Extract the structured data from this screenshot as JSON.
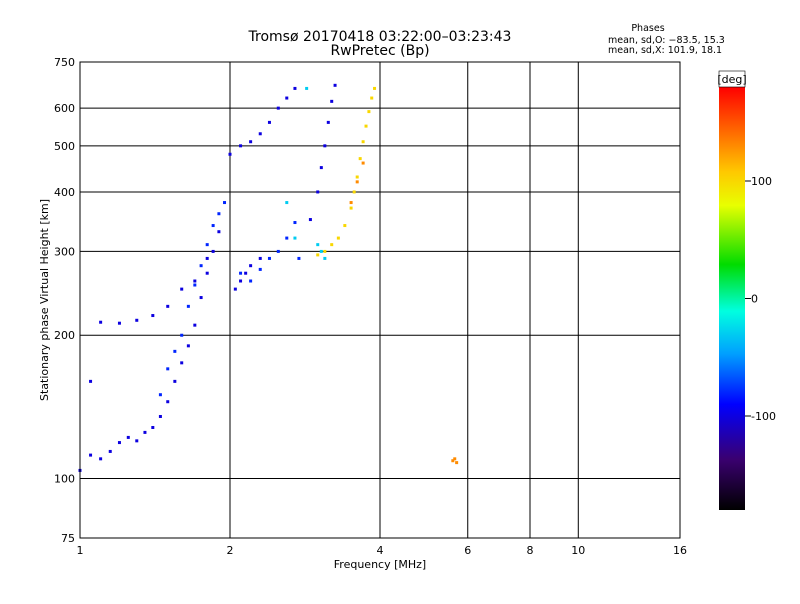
{
  "chart_data": {
    "type": "scatter",
    "title": "Tromsø 20170418 03:22:00–03:23:43",
    "subtitle": "RwPretec (Bp)",
    "xlabel": "Frequency [MHz]",
    "ylabel": "Stationary phase Virtual Height [km]",
    "x_scale": "log",
    "y_scale": "log",
    "xlim": [
      1,
      16
    ],
    "ylim": [
      75,
      750
    ],
    "x_ticks": [
      1,
      2,
      4,
      6,
      8,
      10,
      16
    ],
    "x_tick_labels": [
      "1",
      "2",
      "4",
      "6",
      "8",
      "10",
      "16"
    ],
    "y_ticks": [
      75,
      100,
      200,
      300,
      400,
      500,
      600,
      750
    ],
    "y_tick_labels": [
      "75",
      "100",
      "200",
      "300",
      "400",
      "500",
      "600",
      "750"
    ],
    "grid": true,
    "stats": {
      "heading": "Phases",
      "line_o": "mean, sd,O: −83.5, 15.3",
      "line_x": "mean, sd,X: 101.9, 18.1"
    },
    "colorbar": {
      "label": "[deg]",
      "min": -180,
      "max": 180,
      "ticks": [
        100,
        0,
        -100
      ],
      "tick_labels": [
        "100",
        "0",
        "-100"
      ]
    },
    "series": [
      {
        "phase_deg": -100,
        "points": [
          [
            1.0,
            104
          ],
          [
            1.05,
            112
          ],
          [
            1.1,
            110
          ],
          [
            1.15,
            114
          ],
          [
            1.2,
            119
          ],
          [
            1.25,
            122
          ],
          [
            1.3,
            120
          ],
          [
            1.35,
            125
          ],
          [
            1.4,
            128
          ],
          [
            1.45,
            135
          ],
          [
            1.5,
            145
          ],
          [
            1.55,
            160
          ],
          [
            1.6,
            175
          ],
          [
            1.65,
            190
          ],
          [
            1.7,
            210
          ],
          [
            1.75,
            240
          ],
          [
            1.8,
            270
          ],
          [
            1.85,
            300
          ],
          [
            1.9,
            330
          ],
          [
            1.05,
            160
          ],
          [
            1.1,
            213
          ],
          [
            1.2,
            212
          ],
          [
            1.3,
            215
          ],
          [
            1.4,
            220
          ],
          [
            1.5,
            230
          ],
          [
            1.6,
            250
          ],
          [
            1.7,
            260
          ],
          [
            1.8,
            290
          ],
          [
            2.0,
            480
          ],
          [
            2.1,
            500
          ],
          [
            2.2,
            510
          ],
          [
            2.3,
            530
          ],
          [
            2.4,
            560
          ],
          [
            2.5,
            600
          ],
          [
            2.6,
            630
          ],
          [
            2.7,
            660
          ],
          [
            2.9,
            350
          ],
          [
            3.0,
            400
          ],
          [
            3.05,
            450
          ],
          [
            3.1,
            500
          ],
          [
            3.15,
            560
          ],
          [
            3.2,
            620
          ],
          [
            3.25,
            670
          ],
          [
            2.05,
            250
          ],
          [
            2.1,
            260
          ],
          [
            2.15,
            270
          ],
          [
            2.2,
            280
          ],
          [
            2.3,
            290
          ]
        ]
      },
      {
        "phase_deg": -80,
        "points": [
          [
            1.45,
            150
          ],
          [
            1.5,
            170
          ],
          [
            1.55,
            185
          ],
          [
            1.6,
            200
          ],
          [
            1.65,
            230
          ],
          [
            1.7,
            255
          ],
          [
            1.75,
            280
          ],
          [
            1.8,
            310
          ],
          [
            1.85,
            340
          ],
          [
            1.9,
            360
          ],
          [
            1.95,
            380
          ],
          [
            2.1,
            270
          ],
          [
            2.2,
            260
          ],
          [
            2.3,
            275
          ],
          [
            2.4,
            290
          ],
          [
            2.5,
            300
          ],
          [
            2.6,
            320
          ],
          [
            2.7,
            345
          ],
          [
            2.75,
            290
          ]
        ]
      },
      {
        "phase_deg": -30,
        "points": [
          [
            2.85,
            660
          ],
          [
            2.6,
            380
          ],
          [
            2.7,
            320
          ],
          [
            3.0,
            310
          ],
          [
            3.05,
            300
          ],
          [
            3.1,
            290
          ]
        ]
      },
      {
        "phase_deg": 100,
        "points": [
          [
            3.0,
            295
          ],
          [
            3.1,
            300
          ],
          [
            3.2,
            310
          ],
          [
            3.3,
            320
          ],
          [
            3.4,
            340
          ],
          [
            3.5,
            370
          ],
          [
            3.55,
            400
          ],
          [
            3.6,
            430
          ],
          [
            3.65,
            470
          ],
          [
            3.7,
            510
          ],
          [
            3.75,
            550
          ],
          [
            3.8,
            590
          ],
          [
            3.85,
            630
          ],
          [
            3.9,
            660
          ]
        ]
      },
      {
        "phase_deg": 130,
        "points": [
          [
            5.6,
            109
          ],
          [
            5.65,
            110
          ],
          [
            5.7,
            108
          ],
          [
            3.5,
            380
          ],
          [
            3.6,
            420
          ],
          [
            3.7,
            460
          ]
        ]
      }
    ]
  }
}
